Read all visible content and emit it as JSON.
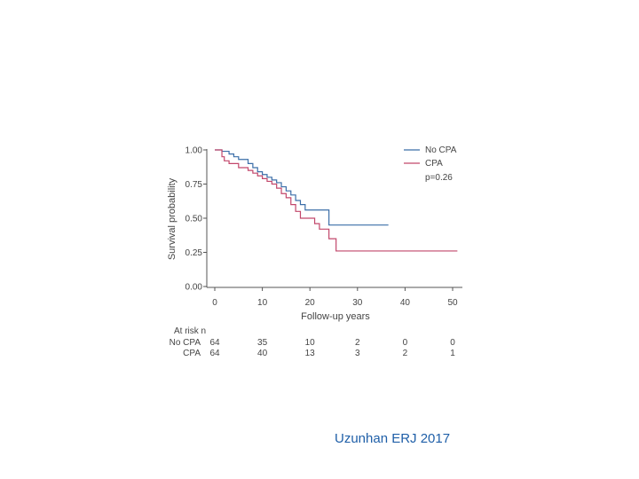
{
  "chart_data": {
    "type": "line",
    "subtype": "kaplan-meier",
    "ylabel": "Survival probability",
    "xlabel": "Follow-up years",
    "xlim": [
      0,
      52
    ],
    "ylim": [
      0,
      1
    ],
    "x_ticks": [
      0,
      10,
      20,
      30,
      40,
      50
    ],
    "x_tick_labels": [
      "0",
      "10",
      "20",
      "30",
      "40",
      "50"
    ],
    "y_ticks": [
      0,
      0.25,
      0.5,
      0.75,
      1
    ],
    "y_tick_labels": [
      "0.00",
      "0.25",
      "0.50",
      "0.75",
      "1.00"
    ],
    "legend": {
      "position": "top-right",
      "p_value": "p=0.26"
    },
    "series": [
      {
        "name": "No CPA",
        "color": "#3b6ea8",
        "steps": [
          [
            0,
            1.0
          ],
          [
            1.5,
            0.99
          ],
          [
            3,
            0.97
          ],
          [
            4,
            0.95
          ],
          [
            5,
            0.93
          ],
          [
            7,
            0.9
          ],
          [
            8,
            0.87
          ],
          [
            9,
            0.84
          ],
          [
            10,
            0.82
          ],
          [
            11,
            0.8
          ],
          [
            12,
            0.78
          ],
          [
            13,
            0.76
          ],
          [
            14,
            0.73
          ],
          [
            15,
            0.7
          ],
          [
            16,
            0.67
          ],
          [
            17,
            0.63
          ],
          [
            18,
            0.6
          ],
          [
            19,
            0.56
          ],
          [
            24,
            0.45
          ],
          [
            36.5,
            0.45
          ]
        ]
      },
      {
        "name": "CPA",
        "color": "#c2476b",
        "steps": [
          [
            0,
            1.0
          ],
          [
            1.5,
            0.95
          ],
          [
            2,
            0.92
          ],
          [
            3,
            0.9
          ],
          [
            5,
            0.87
          ],
          [
            7,
            0.85
          ],
          [
            8,
            0.83
          ],
          [
            9,
            0.81
          ],
          [
            10,
            0.79
          ],
          [
            11,
            0.77
          ],
          [
            12,
            0.75
          ],
          [
            13,
            0.72
          ],
          [
            14,
            0.68
          ],
          [
            15,
            0.65
          ],
          [
            16,
            0.6
          ],
          [
            17,
            0.55
          ],
          [
            18,
            0.5
          ],
          [
            21,
            0.46
          ],
          [
            22,
            0.42
          ],
          [
            24,
            0.35
          ],
          [
            25.5,
            0.26
          ],
          [
            51,
            0.26
          ]
        ]
      }
    ],
    "at_risk": {
      "title": "At risk n",
      "times": [
        0,
        10,
        20,
        30,
        40,
        50
      ],
      "rows": [
        {
          "label": "No CPA",
          "values": [
            "64",
            "35",
            "10",
            "2",
            "0",
            "0"
          ]
        },
        {
          "label": "CPA",
          "values": [
            "64",
            "40",
            "13",
            "3",
            "2",
            "1"
          ]
        }
      ]
    }
  },
  "citation": "Uzunhan ERJ 2017"
}
